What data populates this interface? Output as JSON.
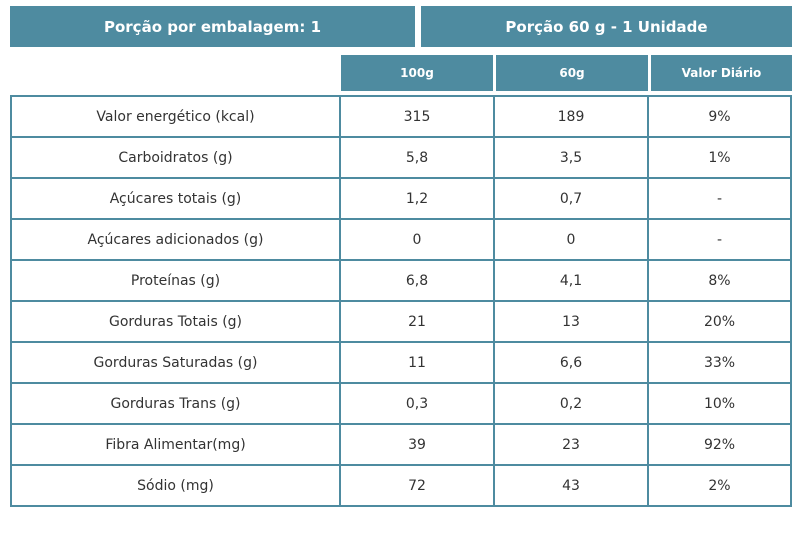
{
  "header": {
    "left": "Porção por embalagem: 1",
    "right": "Porção  60 g - 1 Unidade"
  },
  "columns": [
    "100g",
    "60g",
    "Valor Diário"
  ],
  "rows": [
    {
      "label": "Valor energético (kcal)",
      "v100": "315",
      "v60": "189",
      "vd": "9%"
    },
    {
      "label": "Carboidratos (g)",
      "v100": "5,8",
      "v60": "3,5",
      "vd": "1%"
    },
    {
      "label": "Açúcares totais (g)",
      "v100": "1,2",
      "v60": "0,7",
      "vd": "-"
    },
    {
      "label": "Açúcares adicionados (g)",
      "v100": "0",
      "v60": "0",
      "vd": "-"
    },
    {
      "label": "Proteínas (g)",
      "v100": "6,8",
      "v60": "4,1",
      "vd": "8%"
    },
    {
      "label": "Gorduras Totais (g)",
      "v100": "21",
      "v60": "13",
      "vd": "20%"
    },
    {
      "label": "Gorduras Saturadas (g)",
      "v100": "11",
      "v60": "6,6",
      "vd": "33%"
    },
    {
      "label": "Gorduras Trans (g)",
      "v100": "0,3",
      "v60": "0,2",
      "vd": "10%"
    },
    {
      "label": "Fibra Alimentar(mg)",
      "v100": "39",
      "v60": "23",
      "vd": "92%"
    },
    {
      "label": "Sódio (mg)",
      "v100": "72",
      "v60": "43",
      "vd": "2%"
    }
  ]
}
